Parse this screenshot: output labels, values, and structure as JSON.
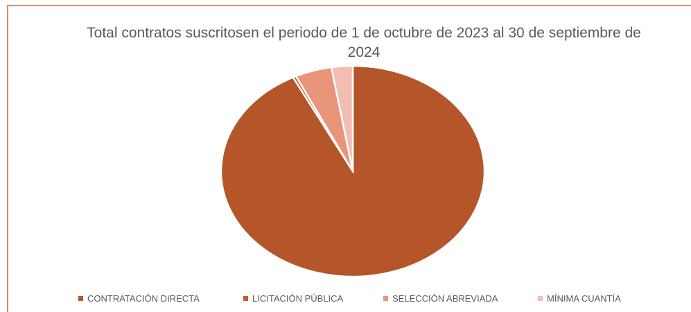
{
  "chart_data": {
    "type": "pie",
    "title": "Total contratos suscritosen el periodo de 1 de octubre de 2023 al 30 de septiembre de 2024",
    "categories": [
      "CONTRATACIÓN DIRECTA",
      "LICITACIÓN PÚBLICA",
      "SELECCIÓN ABREVIADA",
      "MÍNIMA CUANTÍA"
    ],
    "values": [
      92.5,
      0.4,
      4.5,
      2.6
    ],
    "colors": [
      "#b5562a",
      "#c45e2c",
      "#e8957a",
      "#f2beb3"
    ],
    "legend": "bottom"
  }
}
